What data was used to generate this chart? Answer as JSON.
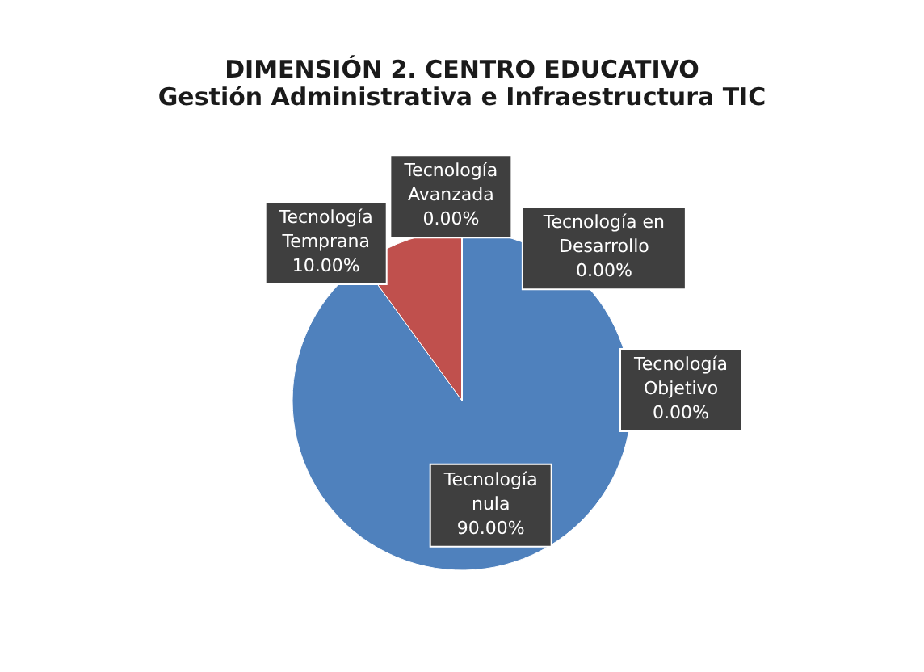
{
  "chart_data": {
    "type": "pie",
    "title": [
      "DIMENSIÓN 2. CENTRO EDUCATIVO",
      "Gestión Administrativa e Infraestructura TIC"
    ],
    "categories": [
      "Tecnología nula",
      "Tecnología Temprana",
      "Tecnología Avanzada",
      "Tecnología  en Desarrollo",
      "Tecnología Objetivo"
    ],
    "values": [
      90,
      10,
      0,
      0,
      0
    ],
    "colors": [
      "#4f81bd",
      "#c0504d",
      "#9bbb59",
      "#8064a2",
      "#4bacc6"
    ],
    "value_labels": [
      "90.00%",
      "10.00%",
      "0.00%",
      "0.00%",
      "0.00%"
    ]
  }
}
